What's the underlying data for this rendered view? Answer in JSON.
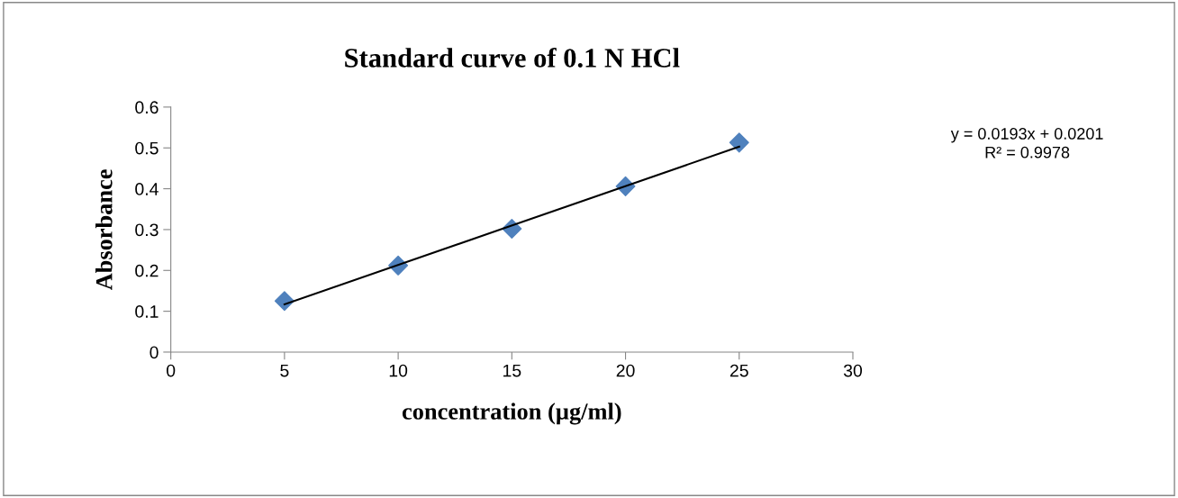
{
  "chart_data": {
    "type": "scatter",
    "title": "Standard curve of 0.1 N HCl",
    "xlabel": "concentration (µg/ml)",
    "ylabel": "Absorbance",
    "series": [
      {
        "color": "#4f81bd",
        "marker": "diamond",
        "x": [
          5,
          10,
          15,
          20,
          25
        ],
        "values": [
          0.125,
          0.212,
          0.302,
          0.406,
          0.513
        ]
      },
      {
        "type": "line",
        "color": "#000000",
        "marker": "none",
        "line_style": "solid",
        "x": [
          5,
          25
        ],
        "values": [
          0.117,
          0.503
        ]
      }
    ],
    "xlim": [
      0,
      30
    ],
    "xticks": [
      0,
      5,
      10,
      15,
      20,
      25,
      30
    ],
    "ylim": [
      0,
      0.6
    ],
    "yticks": [
      0,
      0.1,
      0.2,
      0.3,
      0.4,
      0.5,
      0.6
    ],
    "grid": false,
    "legend": false,
    "annotations": [
      "y = 0.0193x + 0.0201\nR² = 0.9978"
    ]
  }
}
